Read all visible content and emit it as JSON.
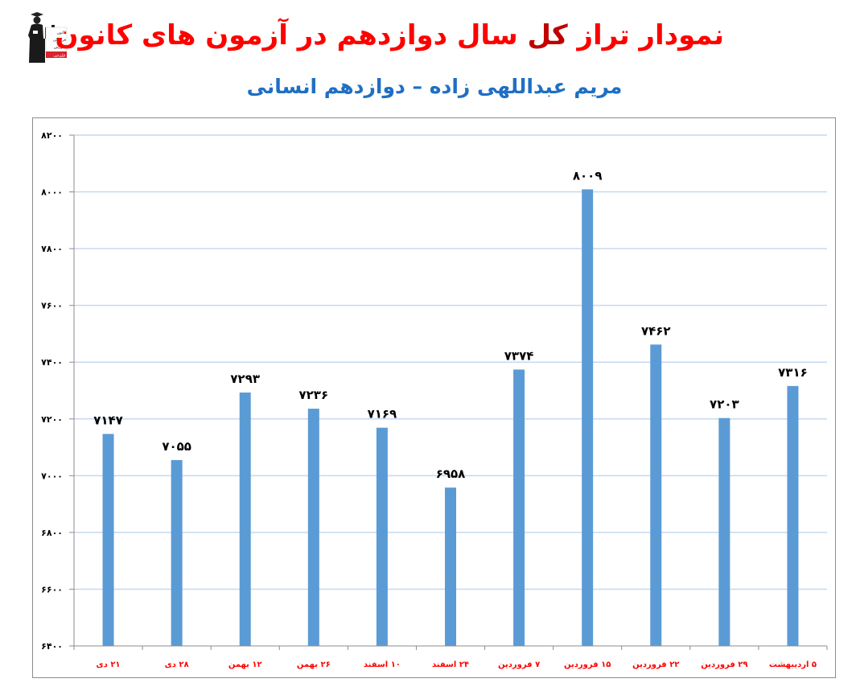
{
  "header": {
    "title_part1": "نمودار تراز",
    "title_part2": "کل",
    "title_part3": "سال دوازدهم در آزمون های کانون",
    "subtitle": "مریم عبداللهی زاده – دوازدهم انسانی",
    "logo_lines": [
      "کانون",
      "فرهنگی",
      "آموزش",
      "قلم‌چی"
    ],
    "logo_icon": "graduate-teacher-icon"
  },
  "colors": {
    "title": "#ff0000",
    "title_dark": "#c00000",
    "subtitle": "#1f6fc4",
    "bar": "#5b9bd5",
    "gridline": "#c5d9f1",
    "axis": "#8c8c8c",
    "category_label": "#ff0000",
    "value_label": "#000000"
  },
  "chart_data": {
    "type": "bar",
    "title": "نمودار تراز کل سال دوازدهم در آزمون های کانون",
    "subtitle": "مریم عبداللهی زاده – دوازدهم انسانی",
    "xlabel": "",
    "ylabel": "",
    "ylim": [
      6400,
      8200
    ],
    "yticks": [
      6400,
      6600,
      6800,
      7000,
      7200,
      7400,
      7600,
      7800,
      8000,
      8200
    ],
    "ytick_labels": [
      "۶۴۰۰",
      "۶۶۰۰",
      "۶۸۰۰",
      "۷۰۰۰",
      "۷۲۰۰",
      "۷۴۰۰",
      "۷۶۰۰",
      "۷۸۰۰",
      "۸۰۰۰",
      "۸۲۰۰"
    ],
    "grid": true,
    "legend": "none",
    "categories": [
      "۲۱ دی",
      "۲۸ دی",
      "۱۲ بهمن",
      "۲۶ بهمن",
      "۱۰ اسفند",
      "۲۴ اسفند",
      "۷ فروردین",
      "۱۵ فروردین",
      "۲۲ فروردین",
      "۲۹ فروردین",
      "۵ اردیبهشت"
    ],
    "values": [
      7147,
      7055,
      7293,
      7236,
      7169,
      6958,
      7374,
      8009,
      7462,
      7203,
      7316
    ],
    "value_labels": [
      "۷۱۴۷",
      "۷۰۵۵",
      "۷۲۹۳",
      "۷۲۳۶",
      "۷۱۶۹",
      "۶۹۵۸",
      "۷۳۷۴",
      "۸۰۰۹",
      "۷۴۶۲",
      "۷۲۰۳",
      "۷۳۱۶"
    ]
  }
}
